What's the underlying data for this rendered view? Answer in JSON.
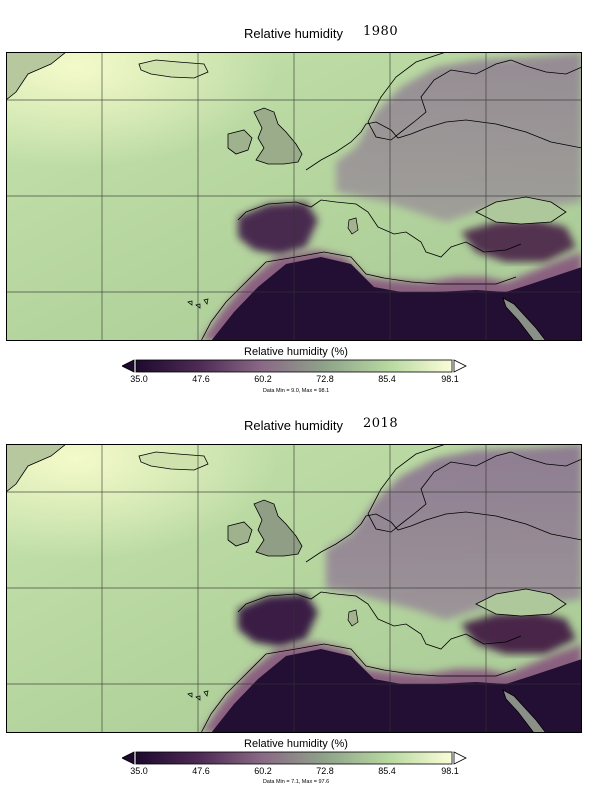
{
  "panels": [
    {
      "title": "Relative humidity",
      "year": "1980",
      "colorbar": {
        "label": "Relative humidity (%)",
        "ticks": [
          "35.0",
          "47.6",
          "60.2",
          "72.8",
          "85.4",
          "98.1"
        ],
        "stats": "Data Min = 9.0, Max = 98.1"
      }
    },
    {
      "title": "Relative humidity",
      "year": "2018",
      "colorbar": {
        "label": "Relative humidity (%)",
        "ticks": [
          "35.0",
          "47.6",
          "60.2",
          "72.8",
          "85.4",
          "98.1"
        ],
        "stats": "Data Min = 7.1, Max = 97.6"
      }
    }
  ],
  "colors": {
    "dry": "#230f33",
    "mid_dry": "#7a4f78",
    "mid": "#8e9c86",
    "humid": "#b9dba2",
    "very_humid": "#f8fbd2",
    "coastline": "#000000",
    "gridline": "#333333"
  }
}
